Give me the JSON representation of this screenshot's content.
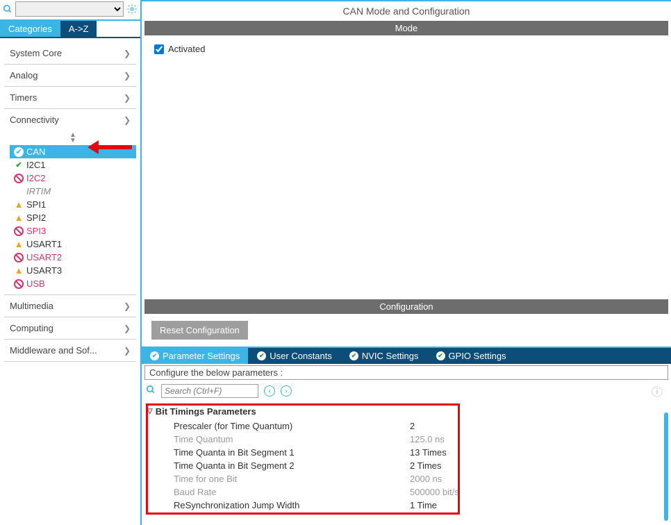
{
  "header": {
    "title": "CAN Mode and Configuration"
  },
  "sidebar": {
    "tabs": {
      "categories": "Categories",
      "az": "A->Z"
    },
    "groups": [
      {
        "label": "System Core",
        "expanded": false
      },
      {
        "label": "Analog",
        "expanded": false
      },
      {
        "label": "Timers",
        "expanded": false
      },
      {
        "label": "Connectivity",
        "expanded": true
      },
      {
        "label": "Multimedia",
        "expanded": false
      },
      {
        "label": "Computing",
        "expanded": false
      },
      {
        "label": "Middleware and Sof...",
        "expanded": false
      }
    ],
    "connectivity_items": [
      {
        "label": "CAN",
        "status": "ok",
        "selected": true
      },
      {
        "label": "I2C1",
        "status": "check"
      },
      {
        "label": "I2C2",
        "status": "ban"
      },
      {
        "label": "IRTIM",
        "status": "italic"
      },
      {
        "label": "SPI1",
        "status": "warn"
      },
      {
        "label": "SPI2",
        "status": "warn"
      },
      {
        "label": "SPI3",
        "status": "ban"
      },
      {
        "label": "USART1",
        "status": "warn"
      },
      {
        "label": "USART2",
        "status": "ban"
      },
      {
        "label": "USART3",
        "status": "warn"
      },
      {
        "label": "USB",
        "status": "ban"
      }
    ]
  },
  "mode": {
    "section_label": "Mode",
    "activated_label": "Activated",
    "activated": true
  },
  "config": {
    "section_label": "Configuration",
    "reset_label": "Reset Configuration",
    "tabs": [
      {
        "label": "Parameter Settings",
        "active": true
      },
      {
        "label": "User Constants"
      },
      {
        "label": "NVIC Settings"
      },
      {
        "label": "GPIO Settings"
      }
    ],
    "note": "Configure the below parameters :",
    "search_placeholder": "Search (Ctrl+F)",
    "group_header": "Bit Timings Parameters",
    "params": [
      {
        "k": "Prescaler (for Time Quantum)",
        "v": "2",
        "grey": false
      },
      {
        "k": "Time Quantum",
        "v": "125.0 ns",
        "grey": true
      },
      {
        "k": "Time Quanta in Bit Segment 1",
        "v": "13 Times",
        "grey": false
      },
      {
        "k": "Time Quanta in Bit Segment 2",
        "v": "2 Times",
        "grey": false
      },
      {
        "k": "Time for one Bit",
        "v": "2000 ns",
        "grey": true
      },
      {
        "k": "Baud Rate",
        "v": "500000 bit/s",
        "grey": true
      },
      {
        "k": "ReSynchronization Jump Width",
        "v": "1 Time",
        "grey": false
      }
    ]
  },
  "colors": {
    "accent": "#3cb4e6",
    "darknav": "#0d4d7a",
    "red": "#e30613",
    "pink": "#d6336c",
    "warn": "#e6a817",
    "green": "#2ca02c",
    "greybar": "#6d6d6d"
  }
}
